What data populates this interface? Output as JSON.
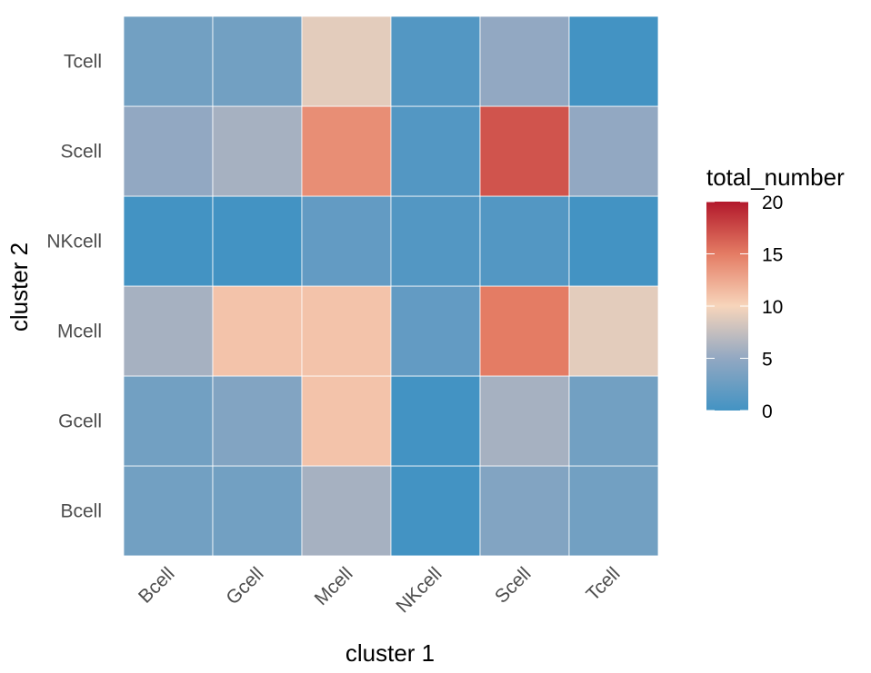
{
  "chart_data": {
    "type": "heatmap",
    "x_categories": [
      "Bcell",
      "Gcell",
      "Mcell",
      "NKcell",
      "Scell",
      "Tcell"
    ],
    "y_categories": [
      "Bcell",
      "Gcell",
      "Mcell",
      "NKcell",
      "Scell",
      "Tcell"
    ],
    "xlabel": "cluster 1",
    "ylabel": "cluster 2",
    "values": [
      [
        3,
        3,
        6,
        0,
        4,
        3
      ],
      [
        3,
        4,
        11,
        0,
        6,
        3
      ],
      [
        6,
        11,
        11,
        2,
        15,
        9
      ],
      [
        0,
        0,
        2,
        1,
        1,
        0
      ],
      [
        5,
        6,
        14,
        1,
        17,
        5
      ],
      [
        3,
        3,
        9,
        1,
        5,
        0
      ]
    ],
    "legend": {
      "title": "total_number",
      "ticks": [
        0,
        5,
        10,
        15,
        20
      ],
      "range": [
        0,
        20
      ],
      "colors": [
        "#4393c3",
        "#92a8c2",
        "#f7d5bb",
        "#e47c64",
        "#b2182b"
      ]
    },
    "grid": true,
    "legend_placement": "right"
  }
}
